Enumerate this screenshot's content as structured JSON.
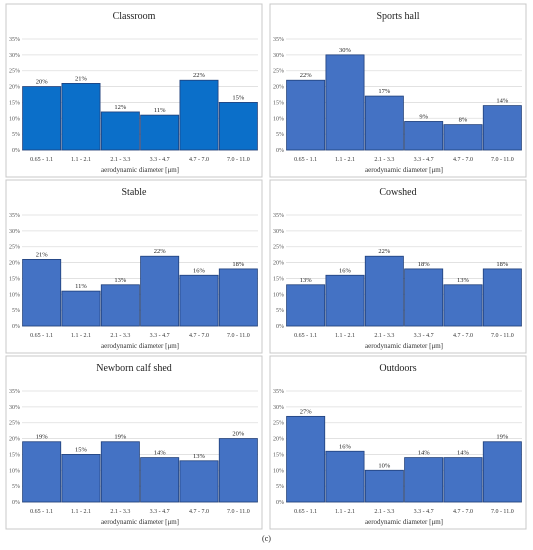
{
  "figure": {
    "caption": "(c)"
  },
  "colors": {
    "bar": "#4472c4",
    "bar_highlight": "#1f6fc4",
    "grid": "#dedede"
  },
  "chart_data": [
    {
      "type": "bar",
      "title": "Classroom",
      "xlabel": "aerodynamic diameter [μm]",
      "ylabel": "",
      "ylim": [
        0,
        35
      ],
      "yticks": [
        "0%",
        "5%",
        "10%",
        "15%",
        "20%",
        "25%",
        "30%",
        "35%"
      ],
      "categories": [
        "0.65 - 1.1",
        "1.1 - 2.1",
        "2.1 - 3.3",
        "3.3 - 4.7",
        "4.7 - 7.0",
        "7.0 - 11.0"
      ],
      "values": [
        20,
        21,
        12,
        11,
        22,
        15
      ],
      "labels": [
        "20%",
        "21%",
        "12%",
        "11%",
        "22%",
        "15%"
      ],
      "color": "#0b6fc9"
    },
    {
      "type": "bar",
      "title": "Sports hall",
      "xlabel": "aerodynamic diameter [μm]",
      "ylabel": "",
      "ylim": [
        0,
        35
      ],
      "yticks": [
        "0%",
        "5%",
        "10%",
        "15%",
        "20%",
        "25%",
        "30%",
        "35%"
      ],
      "categories": [
        "0.65 - 1.1",
        "1.1 - 2.1",
        "2.1 - 3.3",
        "3.3 - 4.7",
        "4.7 - 7.0",
        "7.0 - 11.0"
      ],
      "values": [
        22,
        30,
        17,
        9,
        8,
        14
      ],
      "labels": [
        "22%",
        "30%",
        "17%",
        "9%",
        "8%",
        "14%"
      ],
      "color": "#4472c4"
    },
    {
      "type": "bar",
      "title": "Stable",
      "xlabel": "aerodynamic diameter [μm]",
      "ylabel": "",
      "ylim": [
        0,
        35
      ],
      "yticks": [
        "0%",
        "5%",
        "10%",
        "15%",
        "20%",
        "25%",
        "30%",
        "35%"
      ],
      "categories": [
        "0.65 - 1.1",
        "1.1 - 2.1",
        "2.1 - 3.3",
        "3.3 - 4.7",
        "4.7 - 7.0",
        "7.0 - 11.0"
      ],
      "values": [
        21,
        11,
        13,
        22,
        16,
        18
      ],
      "labels": [
        "21%",
        "11%",
        "13%",
        "22%",
        "16%",
        "18%"
      ],
      "color": "#4472c4"
    },
    {
      "type": "bar",
      "title": "Cowshed",
      "xlabel": "aerodynamic diameter [μm]",
      "ylabel": "",
      "ylim": [
        0,
        35
      ],
      "yticks": [
        "0%",
        "5%",
        "10%",
        "15%",
        "20%",
        "25%",
        "30%",
        "35%"
      ],
      "categories": [
        "0.65 - 1.1",
        "1.1 - 2.1",
        "2.1 - 3.3",
        "3.3 - 4.7",
        "4.7 - 7.0",
        "7.0 - 11.0"
      ],
      "values": [
        13,
        16,
        22,
        18,
        13,
        18
      ],
      "labels": [
        "13%",
        "16%",
        "22%",
        "18%",
        "13%",
        "18%"
      ],
      "color": "#4472c4"
    },
    {
      "type": "bar",
      "title": "Newborn calf shed",
      "xlabel": "aerodynamic diameter [μm]",
      "ylabel": "",
      "ylim": [
        0,
        35
      ],
      "yticks": [
        "0%",
        "5%",
        "10%",
        "15%",
        "20%",
        "25%",
        "30%",
        "35%"
      ],
      "categories": [
        "0.65 - 1.1",
        "1.1 - 2.1",
        "2.1 - 3.3",
        "3.3 - 4.7",
        "4.7 - 7.0",
        "7.0 - 11.0"
      ],
      "values": [
        19,
        15,
        19,
        14,
        13,
        20
      ],
      "labels": [
        "19%",
        "15%",
        "19%",
        "14%",
        "13%",
        "20%"
      ],
      "color": "#4472c4"
    },
    {
      "type": "bar",
      "title": "Outdoors",
      "xlabel": "aerodynamic diameter [μm]",
      "ylabel": "",
      "ylim": [
        0,
        35
      ],
      "yticks": [
        "0%",
        "5%",
        "10%",
        "15%",
        "20%",
        "25%",
        "30%",
        "35%"
      ],
      "categories": [
        "0.65 - 1.1",
        "1.1 - 2.1",
        "2.1 - 3.3",
        "3.3 - 4.7",
        "4.7 - 7.0",
        "7.0 - 11.0"
      ],
      "values": [
        27,
        16,
        10,
        14,
        14,
        19
      ],
      "labels": [
        "27%",
        "16%",
        "10%",
        "14%",
        "14%",
        "19%"
      ],
      "color": "#4472c4"
    }
  ]
}
